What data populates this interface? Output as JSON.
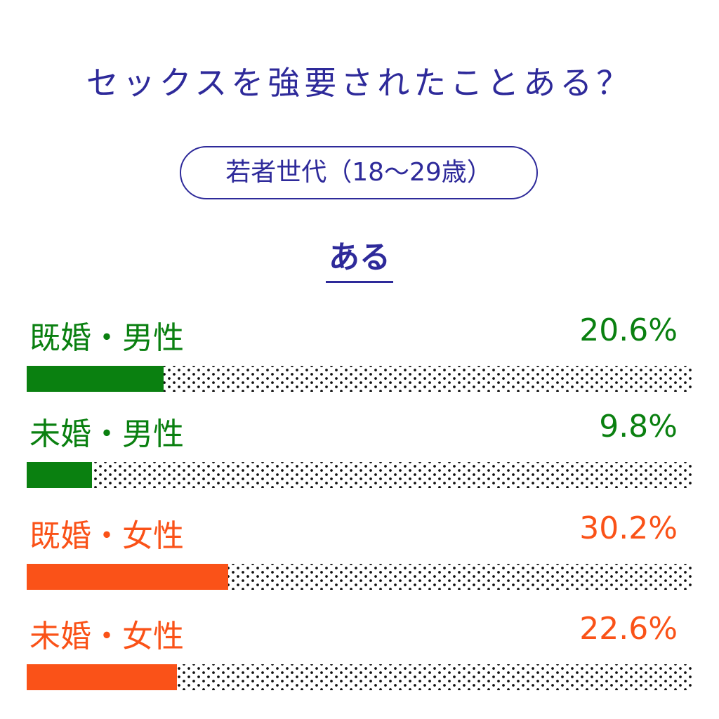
{
  "chart_data": {
    "type": "bar",
    "title": "セックスを強要されたことある？",
    "subtitle": "若者世代（18〜29歳）",
    "answer": "ある",
    "categories": [
      "既婚・男性",
      "未婚・男性",
      "既婚・女性",
      "未婚・女性"
    ],
    "values": [
      20.6,
      9.8,
      30.2,
      22.6
    ],
    "value_labels": [
      "20.6%",
      "9.8%",
      "30.2%",
      "22.6%"
    ],
    "colors": [
      "#0a8010",
      "#0a8010",
      "#fa5218",
      "#fa5218"
    ],
    "xlim": [
      0,
      100
    ],
    "xlabel": "",
    "ylabel": ""
  }
}
